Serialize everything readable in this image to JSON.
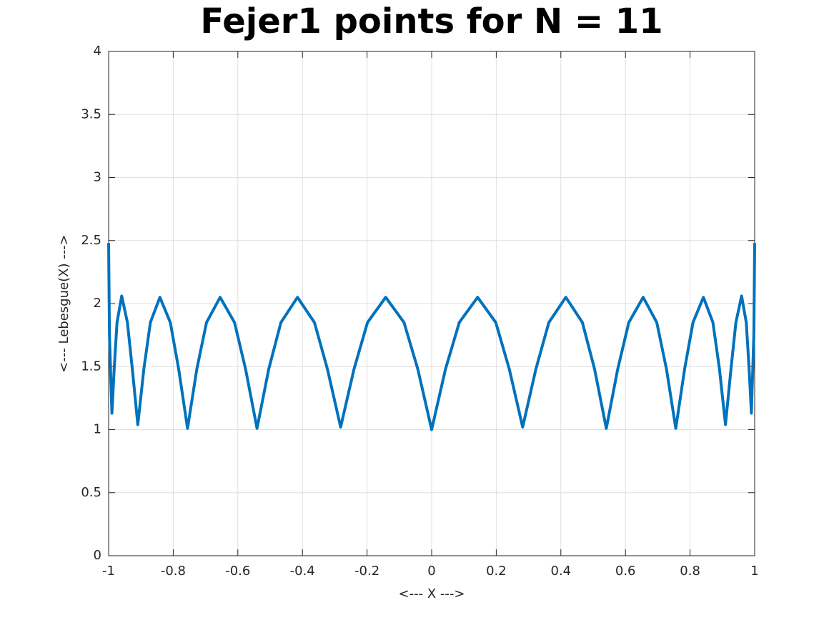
{
  "chart_data": {
    "type": "line",
    "title": "Fejer1 points for N = 11",
    "x_label": "<--- X --->",
    "y_label": "<--- Lebesgue(X) --->",
    "xlim": [
      -1,
      1
    ],
    "ylim": [
      0,
      4
    ],
    "xticks": [
      -1,
      -0.8,
      -0.6,
      -0.4,
      -0.2,
      0,
      0.2,
      0.4,
      0.6,
      0.8,
      1
    ],
    "yticks": [
      0,
      0.5,
      1,
      1.5,
      2,
      2.5,
      3,
      3.5,
      4
    ],
    "grid": true,
    "x": [
      -1,
      -0.99745,
      -0.98982,
      -0.98282,
      -0.97401,
      -0.95949,
      -0.94184,
      -0.92658,
      -0.90963,
      -0.89101,
      -0.87077,
      -0.84125,
      -0.80902,
      -0.7831,
      -0.75575,
      -0.72699,
      -0.69693,
      -0.65486,
      -0.6103,
      -0.576,
      -0.54064,
      -0.50434,
      -0.46666,
      -0.41542,
      -0.36281,
      -0.32262,
      -0.28173,
      -0.2404,
      -0.19858,
      -0.14231,
      -0.08558,
      -0.04283,
      0,
      0.04283,
      0.08558,
      0.14231,
      0.19858,
      0.2404,
      0.28173,
      0.32262,
      0.36281,
      0.41542,
      0.46666,
      0.50434,
      0.54064,
      0.576,
      0.6103,
      0.65486,
      0.69693,
      0.72699,
      0.75575,
      0.7831,
      0.80902,
      0.84125,
      0.87077,
      0.89101,
      0.90963,
      0.92658,
      0.94184,
      0.95949,
      0.97401,
      0.98282,
      0.98982,
      0.99745,
      1
    ],
    "series": [
      {
        "color": "#0072bd",
        "values": [
          2.48,
          1.75,
          1.13,
          1.48,
          1.85,
          2.06,
          1.85,
          1.48,
          1.04,
          1.48,
          1.85,
          2.05,
          1.85,
          1.48,
          1.01,
          1.48,
          1.85,
          2.05,
          1.85,
          1.48,
          1.01,
          1.48,
          1.85,
          2.05,
          1.85,
          1.48,
          1.02,
          1.48,
          1.85,
          2.05,
          1.85,
          1.48,
          1.0,
          1.48,
          1.85,
          2.05,
          1.85,
          1.48,
          1.02,
          1.48,
          1.85,
          2.05,
          1.85,
          1.48,
          1.01,
          1.48,
          1.85,
          2.05,
          1.85,
          1.48,
          1.01,
          1.48,
          1.85,
          2.05,
          1.85,
          1.48,
          1.04,
          1.48,
          1.85,
          2.06,
          1.85,
          1.48,
          1.13,
          1.75,
          2.48
        ]
      }
    ]
  }
}
